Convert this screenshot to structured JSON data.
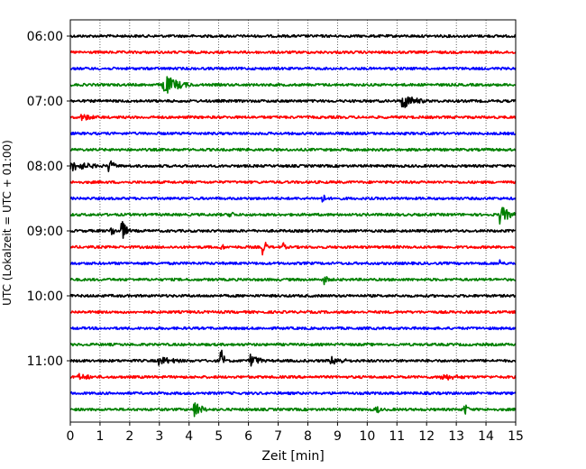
{
  "chart_data": {
    "type": "line",
    "title": "",
    "xlabel": "Zeit  [min]",
    "ylabel": "UTC (Lokalzeit = UTC + 01:00)",
    "xlim": [
      0,
      15
    ],
    "x_ticks": [
      "0",
      "1",
      "2",
      "3",
      "4",
      "5",
      "6",
      "7",
      "8",
      "9",
      "10",
      "11",
      "12",
      "13",
      "14",
      "15"
    ],
    "y_ticks": [
      "06:00",
      "07:00",
      "08:00",
      "09:00",
      "10:00",
      "11:00"
    ],
    "grid": "vertical dotted at each minute",
    "trace_colors": [
      "#000000",
      "#ff0000",
      "#0000ff",
      "#008000"
    ],
    "traces": [
      {
        "start": "06:00",
        "color": "#000000",
        "events": []
      },
      {
        "start": "06:15",
        "color": "#ff0000",
        "events": []
      },
      {
        "start": "06:30",
        "color": "#0000ff",
        "events": []
      },
      {
        "start": "06:45",
        "color": "#008000",
        "events": [
          {
            "t": 3.15,
            "amp": 12,
            "dur": 1.1
          }
        ]
      },
      {
        "start": "07:00",
        "color": "#000000",
        "events": [
          {
            "t": 11.2,
            "amp": 9,
            "dur": 1.0
          }
        ]
      },
      {
        "start": "07:15",
        "color": "#ff0000",
        "events": [
          {
            "t": 0.4,
            "amp": 4,
            "dur": 1.2
          }
        ]
      },
      {
        "start": "07:30",
        "color": "#0000ff",
        "events": []
      },
      {
        "start": "07:45",
        "color": "#008000",
        "events": []
      },
      {
        "start": "08:00",
        "color": "#000000",
        "events": [
          {
            "t": 0.0,
            "amp": 6,
            "dur": 1.8
          },
          {
            "t": 1.3,
            "amp": 8,
            "dur": 0.4
          }
        ]
      },
      {
        "start": "08:15",
        "color": "#ff0000",
        "events": []
      },
      {
        "start": "08:30",
        "color": "#0000ff",
        "events": [
          {
            "t": 8.5,
            "amp": 6,
            "dur": 0.2
          }
        ]
      },
      {
        "start": "08:45",
        "color": "#008000",
        "events": [
          {
            "t": 5.4,
            "amp": 6,
            "dur": 0.2
          },
          {
            "t": 14.5,
            "amp": 11,
            "dur": 0.6
          }
        ]
      },
      {
        "start": "09:00",
        "color": "#000000",
        "events": [
          {
            "t": 1.4,
            "amp": 6,
            "dur": 0.3
          },
          {
            "t": 1.75,
            "amp": 12,
            "dur": 0.3
          }
        ]
      },
      {
        "start": "09:15",
        "color": "#ff0000",
        "events": [
          {
            "t": 5.1,
            "amp": 5,
            "dur": 0.15
          },
          {
            "t": 6.5,
            "amp": 13,
            "dur": 0.15
          },
          {
            "t": 7.2,
            "amp": 5,
            "dur": 0.1
          }
        ]
      },
      {
        "start": "09:30",
        "color": "#0000ff",
        "events": [
          {
            "t": 14.5,
            "amp": 5,
            "dur": 0.15
          }
        ]
      },
      {
        "start": "09:45",
        "color": "#008000",
        "events": [
          {
            "t": 8.6,
            "amp": 6,
            "dur": 0.15
          }
        ]
      },
      {
        "start": "10:00",
        "color": "#000000",
        "events": []
      },
      {
        "start": "10:15",
        "color": "#ff0000",
        "events": []
      },
      {
        "start": "10:30",
        "color": "#0000ff",
        "events": []
      },
      {
        "start": "10:45",
        "color": "#008000",
        "events": []
      },
      {
        "start": "11:00",
        "color": "#000000",
        "events": [
          {
            "t": 3.0,
            "amp": 5,
            "dur": 1.5
          },
          {
            "t": 5.1,
            "amp": 14,
            "dur": 0.15
          },
          {
            "t": 6.1,
            "amp": 8,
            "dur": 0.6
          },
          {
            "t": 8.8,
            "amp": 5,
            "dur": 1.2
          }
        ]
      },
      {
        "start": "11:15",
        "color": "#ff0000",
        "events": [
          {
            "t": 0.3,
            "amp": 4,
            "dur": 1.2
          },
          {
            "t": 12.5,
            "amp": 4,
            "dur": 2.0
          }
        ]
      },
      {
        "start": "11:30",
        "color": "#0000ff",
        "events": []
      },
      {
        "start": "11:45",
        "color": "#008000",
        "events": [
          {
            "t": 4.2,
            "amp": 10,
            "dur": 0.5
          },
          {
            "t": 10.3,
            "amp": 7,
            "dur": 0.2
          },
          {
            "t": 13.3,
            "amp": 7,
            "dur": 0.2
          }
        ]
      }
    ]
  }
}
